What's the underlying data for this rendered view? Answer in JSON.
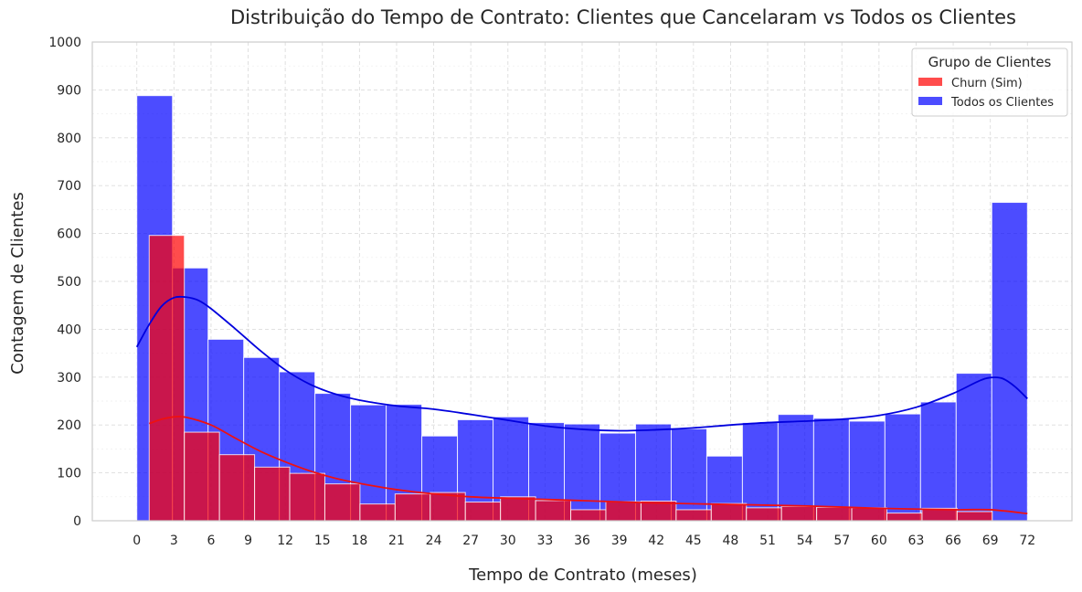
{
  "chart_data": {
    "type": "histogram",
    "title": "Distribuição do Tempo de Contrato: Clientes que Cancelaram vs Todos os Clientes",
    "xlabel": "Tempo de Contrato (meses)",
    "ylabel": "Contagem de Clientes",
    "xlim": [
      -3.6,
      75.6
    ],
    "ylim": [
      0,
      1000
    ],
    "xticks": [
      0,
      3,
      6,
      9,
      12,
      15,
      18,
      21,
      24,
      27,
      30,
      33,
      36,
      39,
      42,
      45,
      48,
      51,
      54,
      57,
      60,
      63,
      66,
      69,
      72
    ],
    "yticks": [
      0,
      100,
      200,
      300,
      400,
      500,
      600,
      700,
      800,
      900,
      1000
    ],
    "grid": true,
    "legend": {
      "title": "Grupo de Clientes",
      "placement": "top-right",
      "entries": [
        {
          "label": "Churn (Sim)",
          "color": "#ff0000"
        },
        {
          "label": "Todos os Clientes",
          "color": "#0000ff"
        }
      ]
    },
    "series": [
      {
        "name": "Churn (Sim)",
        "color": "#ff0000",
        "bin_start": 1,
        "bin_width": 2.84,
        "values": [
          596,
          185,
          138,
          112,
          99,
          77,
          35,
          56,
          59,
          39,
          50,
          42,
          23,
          40,
          41,
          23,
          36,
          27,
          30,
          28,
          27,
          16,
          26,
          19
        ],
        "kde": [
          [
            1,
            203
          ],
          [
            2,
            212
          ],
          [
            3,
            217
          ],
          [
            4,
            216
          ],
          [
            6,
            200
          ],
          [
            8,
            172
          ],
          [
            10,
            145
          ],
          [
            12,
            123
          ],
          [
            14,
            104
          ],
          [
            16,
            89
          ],
          [
            18,
            78
          ],
          [
            21,
            65
          ],
          [
            24,
            56
          ],
          [
            27,
            50
          ],
          [
            30,
            47
          ],
          [
            36,
            42
          ],
          [
            42,
            37
          ],
          [
            48,
            34
          ],
          [
            54,
            31
          ],
          [
            60,
            26
          ],
          [
            66,
            23
          ],
          [
            69,
            23
          ],
          [
            72,
            15
          ]
        ]
      },
      {
        "name": "Todos os Clientes",
        "color": "#0000ff",
        "bin_start": 0,
        "bin_width": 2.88,
        "values": [
          888,
          528,
          379,
          341,
          311,
          266,
          242,
          243,
          177,
          211,
          217,
          205,
          202,
          183,
          202,
          192,
          135,
          205,
          222,
          214,
          208,
          223,
          248,
          308,
          665
        ],
        "kde": [
          [
            0,
            363
          ],
          [
            1,
            410
          ],
          [
            2,
            448
          ],
          [
            3,
            466
          ],
          [
            4,
            467
          ],
          [
            5,
            460
          ],
          [
            6,
            443
          ],
          [
            8,
            400
          ],
          [
            10,
            355
          ],
          [
            12,
            315
          ],
          [
            14,
            285
          ],
          [
            16,
            265
          ],
          [
            18,
            252
          ],
          [
            21,
            240
          ],
          [
            24,
            233
          ],
          [
            27,
            222
          ],
          [
            30,
            210
          ],
          [
            33,
            198
          ],
          [
            36,
            191
          ],
          [
            39,
            188
          ],
          [
            42,
            190
          ],
          [
            45,
            194
          ],
          [
            48,
            200
          ],
          [
            51,
            205
          ],
          [
            54,
            208
          ],
          [
            57,
            212
          ],
          [
            60,
            220
          ],
          [
            63,
            237
          ],
          [
            66,
            266
          ],
          [
            68,
            291
          ],
          [
            69,
            299
          ],
          [
            70,
            297
          ],
          [
            71,
            280
          ],
          [
            72,
            255
          ]
        ]
      }
    ]
  }
}
